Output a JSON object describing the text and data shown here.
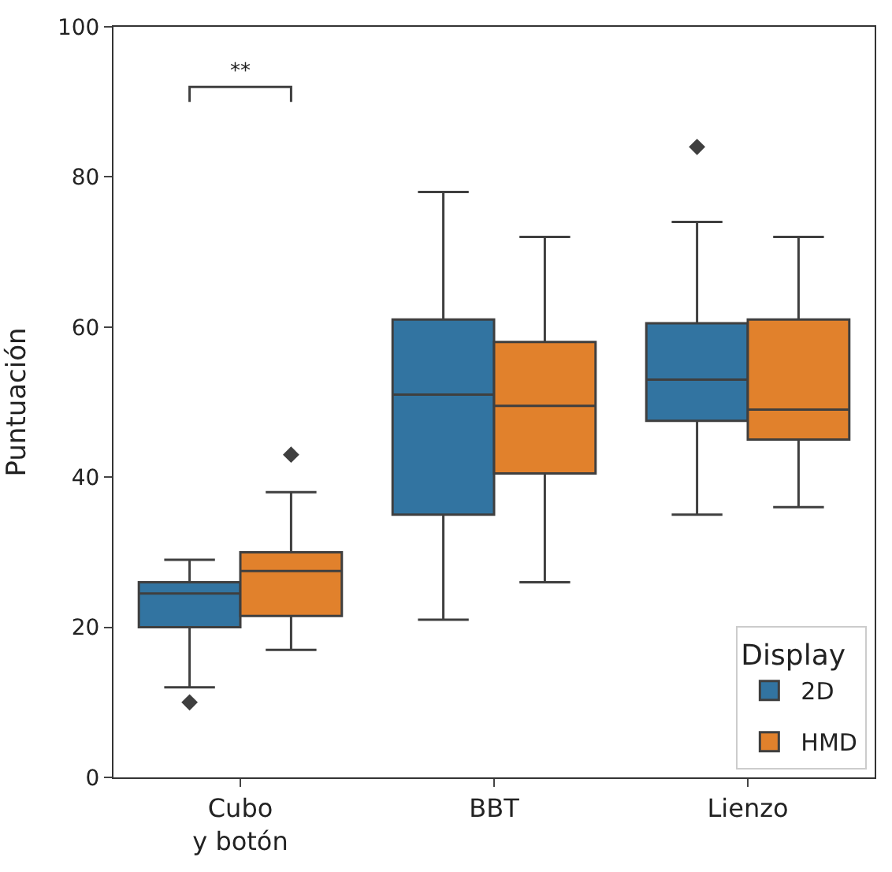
{
  "chart_data": {
    "type": "box",
    "ylabel": "Puntuación",
    "legend_title": "Display",
    "categories": [
      "Cubo\ny botón",
      "BBT",
      "Lienzo"
    ],
    "series": [
      {
        "name": "2D",
        "color": "#3274a1",
        "boxes": [
          {
            "low": 12,
            "q1": 20,
            "median": 24.5,
            "q3": 26,
            "high": 29,
            "outliers": [
              10
            ]
          },
          {
            "low": 21,
            "q1": 35,
            "median": 51,
            "q3": 61,
            "high": 78
          },
          {
            "low": 35,
            "q1": 47.5,
            "median": 53,
            "q3": 60.5,
            "high": 74,
            "outliers": [
              84
            ]
          }
        ]
      },
      {
        "name": "HMD",
        "color": "#e1812c",
        "boxes": [
          {
            "low": 17,
            "q1": 21.5,
            "median": 27.5,
            "q3": 30,
            "high": 38,
            "outliers": [
              43
            ]
          },
          {
            "low": 26,
            "q1": 40.5,
            "median": 49.5,
            "q3": 58,
            "high": 72
          },
          {
            "low": 36,
            "q1": 45,
            "median": 49,
            "q3": 61,
            "high": 72
          }
        ]
      }
    ],
    "ylim": [
      0,
      100
    ],
    "yticks": [
      0,
      20,
      40,
      60,
      80,
      100
    ],
    "legend": "bottom right",
    "marker": "diamond",
    "annotations": [
      "**"
    ]
  }
}
